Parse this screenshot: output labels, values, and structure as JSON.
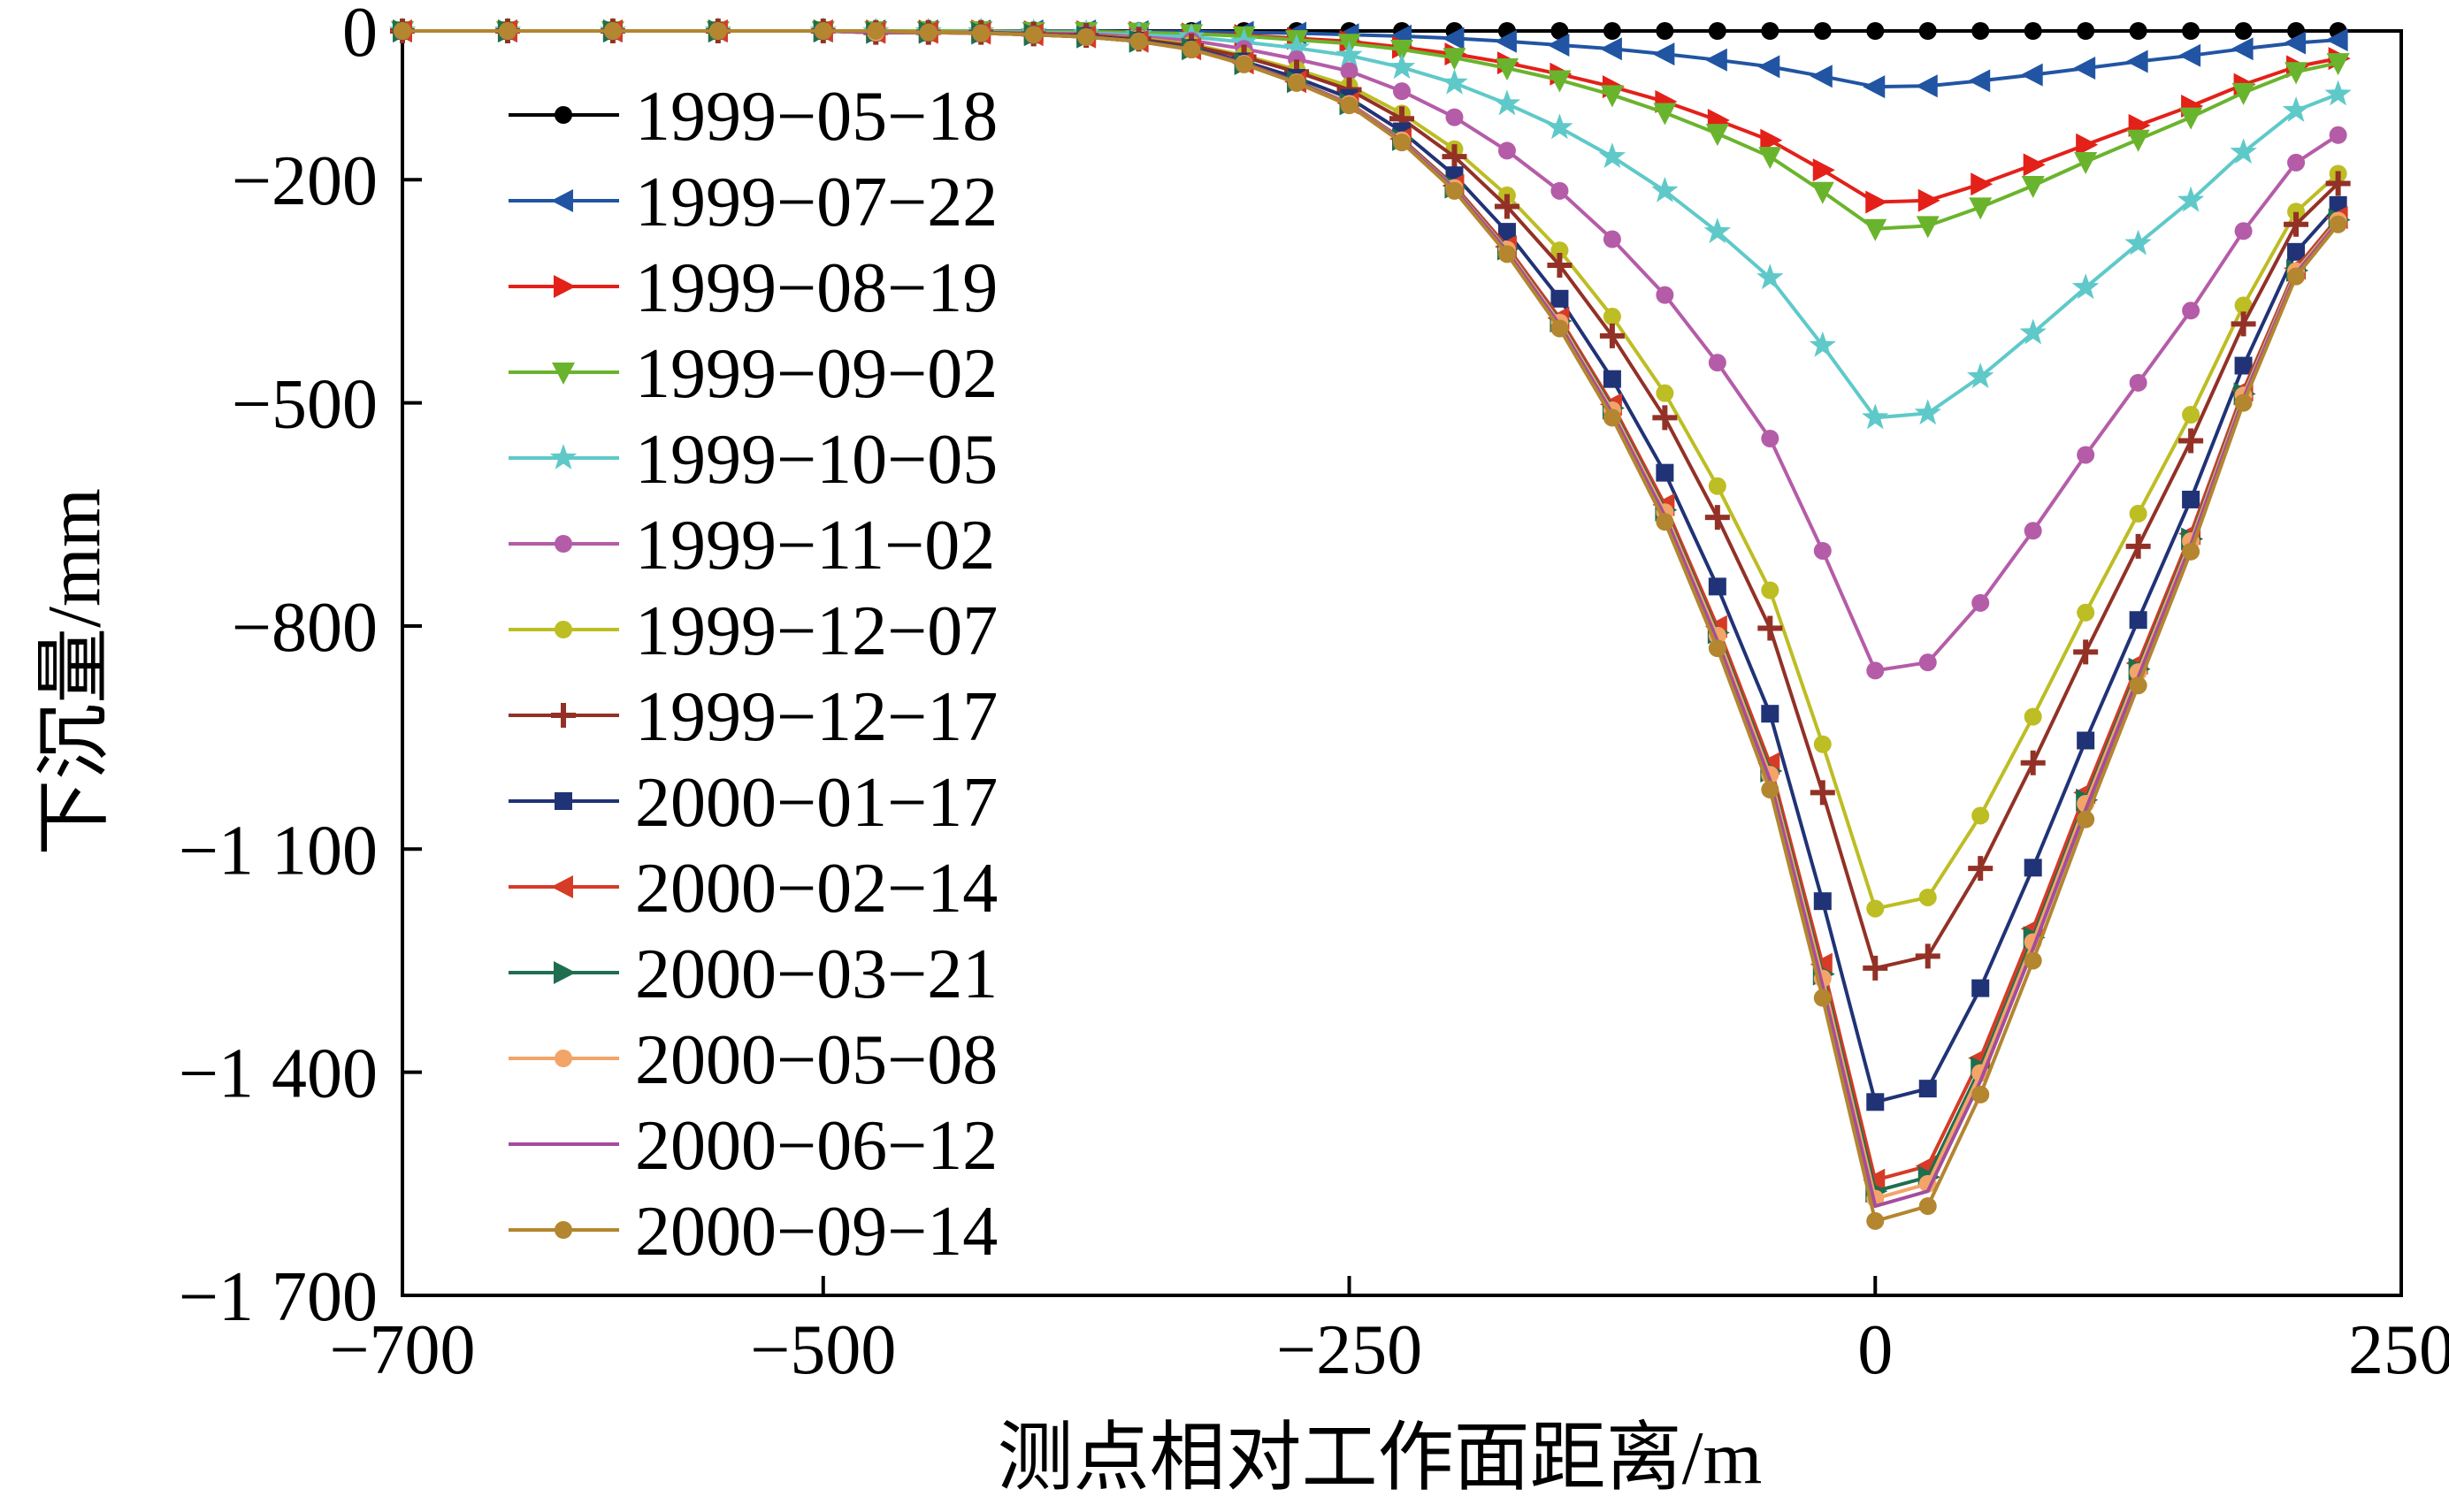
{
  "figure": {
    "y_axis_title": "下沉量/mm",
    "x_axis_title": "测点相对工作面距离/m"
  },
  "chart_data": {
    "type": "line",
    "title": "",
    "xlabel": "测点相对工作面距离/m",
    "ylabel": "下沉量/mm",
    "xlim": [
      -700,
      250
    ],
    "ylim": [
      -1700,
      0
    ],
    "grid": false,
    "legend_position": "upper-left-inside",
    "x_ticks": [
      {
        "v": -700,
        "label": "−700"
      },
      {
        "v": -500,
        "label": "−500"
      },
      {
        "v": -250,
        "label": "−250"
      },
      {
        "v": 0,
        "label": "0"
      },
      {
        "v": 250,
        "label": "250"
      }
    ],
    "y_ticks": [
      {
        "v": 0,
        "label": "0"
      },
      {
        "v": -200,
        "label": "−200"
      },
      {
        "v": -500,
        "label": "−500"
      },
      {
        "v": -800,
        "label": "−800"
      },
      {
        "v": -1100,
        "label": "−1 100"
      },
      {
        "v": -1400,
        "label": "−1 400"
      },
      {
        "v": -1700,
        "label": "−1 700"
      }
    ],
    "x": [
      -700,
      -650,
      -600,
      -550,
      -500,
      -475,
      -450,
      -425,
      -400,
      -375,
      -350,
      -325,
      -300,
      -275,
      -250,
      -225,
      -200,
      -175,
      -150,
      -125,
      -100,
      -75,
      -50,
      -25,
      0,
      25,
      50,
      75,
      100,
      125,
      150,
      175,
      200,
      220
    ],
    "series": [
      {
        "label": "1999−05−18",
        "color": "#000000",
        "marker": "circle",
        "values": [
          0,
          0,
          0,
          0,
          0,
          0,
          0,
          0,
          0,
          0,
          0,
          0,
          0,
          0,
          0,
          0,
          0,
          0,
          0,
          0,
          0,
          0,
          0,
          0,
          0,
          0,
          0,
          0,
          0,
          0,
          0,
          0,
          0,
          0
        ]
      },
      {
        "label": "1999−07−22",
        "color": "#2155a3",
        "marker": "tri-left",
        "values": [
          0,
          0,
          0,
          0,
          0,
          0,
          0,
          0,
          0,
          0,
          -1,
          -1,
          -2,
          -3,
          -5,
          -7,
          -10,
          -14,
          -19,
          -24,
          -31,
          -39,
          -48,
          -61,
          -75,
          -74,
          -67,
          -59,
          -50,
          -41,
          -33,
          -24,
          -16,
          -12
        ]
      },
      {
        "label": "1999−08−19",
        "color": "#e32119",
        "marker": "tri-right",
        "values": [
          0,
          0,
          0,
          0,
          0,
          0,
          0,
          0,
          -1,
          -1,
          -2,
          -4,
          -6,
          -10,
          -14,
          -22,
          -31,
          -43,
          -58,
          -75,
          -95,
          -120,
          -147,
          -187,
          -230,
          -228,
          -206,
          -180,
          -153,
          -127,
          -101,
          -72,
          -48,
          -37
        ]
      },
      {
        "label": "1999−09−02",
        "color": "#6ab42d",
        "marker": "tri-down",
        "values": [
          0,
          0,
          0,
          0,
          0,
          0,
          0,
          0,
          -1,
          -1,
          -2,
          -4,
          -7,
          -12,
          -17,
          -25,
          -36,
          -50,
          -66,
          -86,
          -110,
          -138,
          -169,
          -216,
          -266,
          -262,
          -237,
          -208,
          -176,
          -146,
          -116,
          -83,
          -55,
          -43
        ]
      },
      {
        "label": "1999−10−05",
        "color": "#5fc9c9",
        "marker": "star",
        "values": [
          0,
          0,
          0,
          0,
          0,
          -1,
          -1,
          -1,
          -2,
          -3,
          -5,
          -8,
          -15,
          -23,
          -33,
          -49,
          -70,
          -98,
          -130,
          -169,
          -215,
          -270,
          -332,
          -423,
          -520,
          -514,
          -465,
          -406,
          -345,
          -286,
          -228,
          -163,
          -107,
          -85
        ]
      },
      {
        "label": "1999−11−02",
        "color": "#b55ca8",
        "marker": "circle",
        "values": [
          0,
          0,
          0,
          0,
          0,
          -1,
          -1,
          -2,
          -3,
          -4,
          -8,
          -13,
          -24,
          -38,
          -54,
          -81,
          -116,
          -161,
          -215,
          -280,
          -355,
          -446,
          -548,
          -699,
          -860,
          -849,
          -769,
          -672,
          -570,
          -473,
          -376,
          -269,
          -177,
          -140
        ]
      },
      {
        "label": "1999−12−07",
        "color": "#bdbd24",
        "marker": "circle",
        "values": [
          0,
          0,
          0,
          0,
          0,
          -1,
          -1,
          -2,
          -4,
          -6,
          -10,
          -18,
          -33,
          -52,
          -74,
          -111,
          -159,
          -221,
          -295,
          -384,
          -487,
          -612,
          -752,
          -959,
          -1180,
          -1165,
          -1055,
          -922,
          -782,
          -649,
          -516,
          -369,
          -243,
          -192
        ]
      },
      {
        "label": "1999−12−17",
        "color": "#933126",
        "marker": "plus",
        "values": [
          0,
          0,
          0,
          0,
          0,
          -2,
          -2,
          -2,
          -4,
          -6,
          -11,
          -20,
          -35,
          -55,
          -79,
          -118,
          -169,
          -236,
          -315,
          -410,
          -520,
          -654,
          -803,
          -1024,
          -1260,
          -1244,
          -1126,
          -984,
          -835,
          -693,
          -551,
          -394,
          -260,
          -205
        ]
      },
      {
        "label": "2000−01−17",
        "color": "#203376",
        "marker": "square",
        "values": [
          0,
          0,
          0,
          0,
          0,
          -2,
          -2,
          -3,
          -5,
          -7,
          -13,
          -23,
          -41,
          -63,
          -90,
          -135,
          -194,
          -270,
          -360,
          -468,
          -594,
          -747,
          -918,
          -1170,
          -1440,
          -1422,
          -1287,
          -1125,
          -954,
          -792,
          -630,
          -450,
          -297,
          -234
        ]
      },
      {
        "label": "2000−02−14",
        "color": "#d63b26",
        "marker": "tri-left",
        "values": [
          0,
          0,
          0,
          0,
          0,
          -2,
          -2,
          -3,
          -5,
          -8,
          -14,
          -24,
          -43,
          -68,
          -97,
          -145,
          -208,
          -290,
          -386,
          -502,
          -637,
          -801,
          -985,
          -1255,
          -1545,
          -1526,
          -1381,
          -1207,
          -1024,
          -850,
          -676,
          -483,
          -319,
          -251
        ]
      },
      {
        "label": "2000−03−21",
        "color": "#1e6e4f",
        "marker": "tri-right",
        "values": [
          0,
          0,
          0,
          0,
          0,
          -2,
          -2,
          -3,
          -5,
          -8,
          -14,
          -24,
          -44,
          -68,
          -98,
          -146,
          -210,
          -293,
          -390,
          -507,
          -644,
          -809,
          -995,
          -1268,
          -1560,
          -1541,
          -1394,
          -1219,
          -1034,
          -858,
          -683,
          -488,
          -322,
          -254
        ]
      },
      {
        "label": "2000−05−08",
        "color": "#f3a468",
        "marker": "circle",
        "values": [
          0,
          0,
          0,
          0,
          0,
          -2,
          -2,
          -3,
          -5,
          -8,
          -14,
          -25,
          -44,
          -69,
          -98,
          -147,
          -211,
          -294,
          -392,
          -510,
          -647,
          -813,
          -1000,
          -1274,
          -1570,
          -1550,
          -1401,
          -1225,
          -1039,
          -862,
          -686,
          -490,
          -323,
          -255
        ]
      },
      {
        "label": "2000−06−12",
        "color": "#a44d9d",
        "marker": "none",
        "values": [
          0,
          0,
          0,
          0,
          0,
          -2,
          -2,
          -3,
          -5,
          -8,
          -14,
          -25,
          -44,
          -69,
          -99,
          -148,
          -212,
          -296,
          -395,
          -514,
          -652,
          -820,
          -1007,
          -1284,
          -1580,
          -1560,
          -1412,
          -1234,
          -1047,
          -869,
          -691,
          -494,
          -326,
          -257
        ]
      },
      {
        "label": "2000−09−14",
        "color": "#b3862f",
        "marker": "circle",
        "values": [
          0,
          0,
          0,
          0,
          0,
          0,
          -2,
          -3,
          -5,
          -8,
          -14,
          -25,
          -45,
          -70,
          -100,
          -150,
          -215,
          -300,
          -400,
          -520,
          -660,
          -830,
          -1020,
          -1300,
          -1600,
          -1580,
          -1430,
          -1250,
          -1060,
          -880,
          -700,
          -500,
          -330,
          -260
        ]
      }
    ]
  }
}
